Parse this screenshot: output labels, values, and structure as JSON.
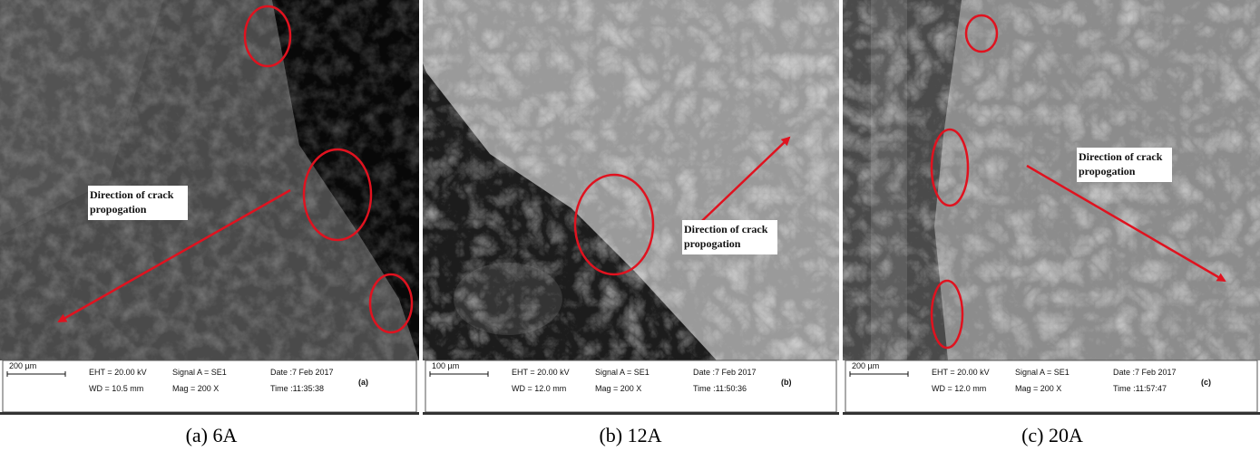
{
  "panels": [
    {
      "annotation": [
        "Direction of crack",
        "propogation"
      ],
      "info_bar": {
        "scale": "200 µm",
        "eht": "EHT = 20.00 kV",
        "wd": "WD = 10.5 mm",
        "signal": "Signal A = SE1",
        "mag": "Mag =   200 X",
        "date": "Date :7 Feb 2017",
        "time": "Time :11:35:38",
        "label": "(a)"
      },
      "caption": "(a) 6A"
    },
    {
      "annotation": [
        "Direction of crack",
        "propogation"
      ],
      "info_bar": {
        "scale": "100 µm",
        "eht": "EHT = 20.00 kV",
        "wd": "WD = 12.0 mm",
        "signal": "Signal A = SE1",
        "mag": "Mag =   200 X",
        "date": "Date :7 Feb 2017",
        "time": "Time :11:50:36",
        "label": "(b)"
      },
      "caption": "(b) 12A"
    },
    {
      "annotation": [
        "Direction of crack",
        "propogation"
      ],
      "info_bar": {
        "scale": "200 µm",
        "eht": "EHT = 20.00 kV",
        "wd": "WD = 12.0 mm",
        "signal": "Signal A = SE1",
        "mag": "Mag =   200 X",
        "date": "Date :7 Feb 2017",
        "time": "Time :11:57:47",
        "label": "(c)"
      },
      "caption": "(c) 20A"
    }
  ]
}
